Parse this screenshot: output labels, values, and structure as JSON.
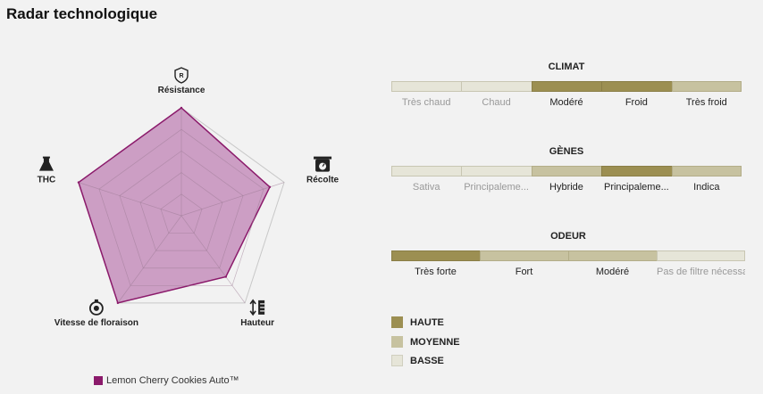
{
  "page": {
    "title": "Radar technologique"
  },
  "radar": {
    "axes": [
      "Résistance",
      "Récolte",
      "Hauteur",
      "Vitesse de floraison",
      "THC"
    ],
    "icons": [
      "shield-r-icon",
      "scale-icon",
      "height-ruler-icon",
      "stopwatch-icon",
      "flask-icon"
    ],
    "levels": 5,
    "series_name": "Lemon Cherry Cookies Auto™",
    "series_color": "#8b1a6b",
    "fill_color": "#cc9ec4"
  },
  "chart_data": {
    "type": "radar",
    "categories": [
      "Résistance",
      "Récolte",
      "Hauteur",
      "Vitesse de floraison",
      "THC"
    ],
    "series": [
      {
        "name": "Lemon Cherry Cookies Auto™",
        "values": [
          100,
          86,
          70,
          100,
          100
        ]
      }
    ],
    "ylim": [
      0,
      100
    ]
  },
  "climat": {
    "title": "CLIMAT",
    "options": [
      "Très chaud",
      "Chaud",
      "Modéré",
      "Froid",
      "Très froid"
    ],
    "levels": [
      "basse",
      "basse",
      "haute",
      "haute",
      "moyenne"
    ]
  },
  "genes": {
    "title": "GÈNES",
    "options": [
      "Sativa",
      "Principaleme...",
      "Hybride",
      "Principaleme...",
      "Indica"
    ],
    "levels": [
      "basse",
      "basse",
      "moyenne",
      "haute",
      "moyenne"
    ]
  },
  "odeur": {
    "title": "ODEUR",
    "options": [
      "Très forte",
      "Fort",
      "Modéré",
      "Pas de filtre nécessaire"
    ],
    "levels": [
      "haute",
      "moyenne",
      "moyenne",
      "basse"
    ]
  },
  "legend": {
    "haute": "HAUTE",
    "moyenne": "MOYENNE",
    "basse": "BASSE",
    "colors": {
      "haute": "#9c8f52",
      "moyenne": "#c7c2a0",
      "basse": "#e6e5d8"
    }
  }
}
